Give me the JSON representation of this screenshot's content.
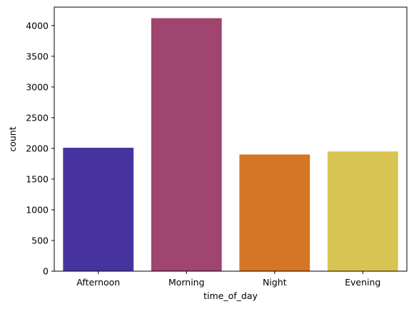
{
  "chart_data": {
    "type": "bar",
    "categories": [
      "Afternoon",
      "Morning",
      "Night",
      "Evening"
    ],
    "values": [
      2010,
      4120,
      1900,
      1950
    ],
    "colors": [
      "#4733a0",
      "#a04470",
      "#d47624",
      "#d7c452"
    ],
    "xlabel": "time_of_day",
    "ylabel": "count",
    "ylim": [
      0,
      4300
    ],
    "yticks": [
      0,
      500,
      1000,
      1500,
      2000,
      2500,
      3000,
      3500,
      4000
    ],
    "ytick_labels": [
      "0",
      "500",
      "1000",
      "1500",
      "2000",
      "2500",
      "3000",
      "3500",
      "4000"
    ],
    "grid": false,
    "legend": "none"
  }
}
